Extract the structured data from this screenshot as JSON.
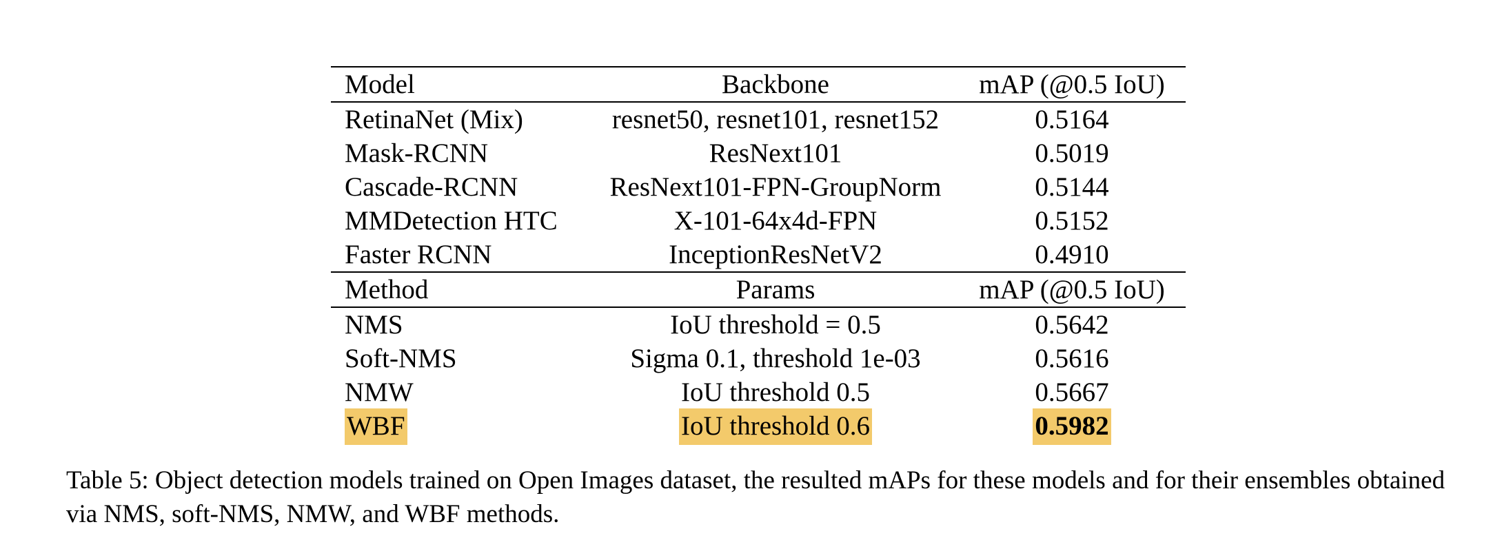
{
  "table": {
    "header1": [
      "Model",
      "Backbone",
      "mAP (@0.5 IoU)"
    ],
    "models": [
      [
        "RetinaNet (Mix)",
        "resnet50, resnet101, resnet152",
        "0.5164"
      ],
      [
        "Mask-RCNN",
        "ResNext101",
        "0.5019"
      ],
      [
        "Cascade-RCNN",
        "ResNext101-FPN-GroupNorm",
        "0.5144"
      ],
      [
        "MMDetection HTC",
        "X-101-64x4d-FPN",
        "0.5152"
      ],
      [
        "Faster RCNN",
        "InceptionResNetV2",
        "0.4910"
      ]
    ],
    "header2": [
      "Method",
      "Params",
      "mAP (@0.5 IoU)"
    ],
    "methods": [
      [
        "NMS",
        "IoU threshold = 0.5",
        "0.5642"
      ],
      [
        "Soft-NMS",
        "Sigma 0.1, threshold 1e-03",
        "0.5616"
      ],
      [
        "NMW",
        "IoU threshold 0.5",
        "0.5667"
      ],
      [
        "WBF",
        "IoU threshold 0.6",
        "0.5982"
      ]
    ],
    "highlight_color": "#f3ca6b"
  },
  "caption": "Table 5: Object detection models trained on Open Images dataset, the resulted mAPs for these models and for their ensembles obtained via NMS, soft-NMS, NMW, and WBF methods."
}
